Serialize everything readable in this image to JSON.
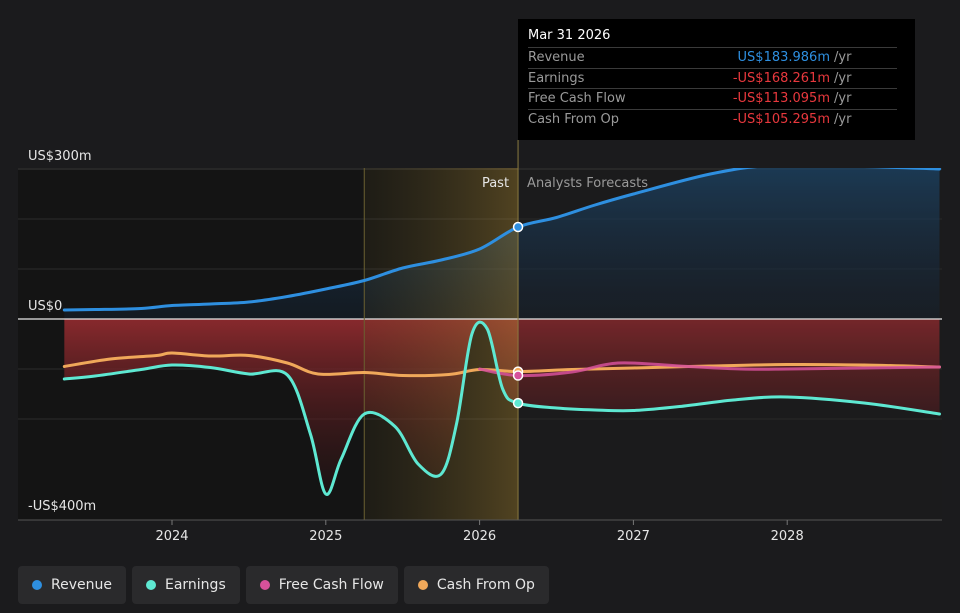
{
  "chart_data": {
    "type": "line",
    "y_labels": {
      "top": "US$300m",
      "zero": "US$0",
      "bottom": "-US$400m"
    },
    "ylim": [
      -400,
      300
    ],
    "xlim": [
      2023.3,
      2028.99
    ],
    "x_ticks": [
      {
        "label": "2024",
        "value": 2024.0
      },
      {
        "label": "2025",
        "value": 2025.0
      },
      {
        "label": "2026",
        "value": 2026.0
      },
      {
        "label": "2027",
        "value": 2027.0
      },
      {
        "label": "2028",
        "value": 2028.0
      }
    ],
    "divider_x": 2026.25,
    "highlight_start_x": 2025.25,
    "past_label": "Past",
    "forecast_label": "Analysts Forecasts",
    "series": [
      {
        "name": "Revenue",
        "color": "#2e8fe0",
        "points": [
          [
            2023.3,
            18
          ],
          [
            2023.5,
            19
          ],
          [
            2023.8,
            21
          ],
          [
            2024.0,
            27
          ],
          [
            2024.25,
            30
          ],
          [
            2024.5,
            34
          ],
          [
            2024.75,
            45
          ],
          [
            2025.0,
            60
          ],
          [
            2025.25,
            77
          ],
          [
            2025.5,
            102
          ],
          [
            2025.75,
            118
          ],
          [
            2026.0,
            140
          ],
          [
            2026.25,
            183.986
          ],
          [
            2026.5,
            203
          ],
          [
            2026.75,
            228
          ],
          [
            2027.0,
            250
          ],
          [
            2027.5,
            290
          ],
          [
            2027.9,
            307
          ],
          [
            2028.5,
            305
          ],
          [
            2028.99,
            300
          ]
        ]
      },
      {
        "name": "Earnings",
        "color": "#5ee8d2",
        "points": [
          [
            2023.3,
            -120
          ],
          [
            2023.5,
            -114
          ],
          [
            2023.8,
            -101
          ],
          [
            2024.0,
            -92
          ],
          [
            2024.25,
            -97
          ],
          [
            2024.5,
            -110
          ],
          [
            2024.75,
            -112
          ],
          [
            2024.9,
            -230
          ],
          [
            2025.0,
            -350
          ],
          [
            2025.1,
            -280
          ],
          [
            2025.25,
            -190
          ],
          [
            2025.45,
            -215
          ],
          [
            2025.6,
            -290
          ],
          [
            2025.75,
            -310
          ],
          [
            2025.85,
            -210
          ],
          [
            2025.95,
            -30
          ],
          [
            2026.05,
            -20
          ],
          [
            2026.15,
            -140
          ],
          [
            2026.25,
            -168.261
          ],
          [
            2026.5,
            -178
          ],
          [
            2026.75,
            -182
          ],
          [
            2027.0,
            -183
          ],
          [
            2027.3,
            -175
          ],
          [
            2027.65,
            -162
          ],
          [
            2028.0,
            -156
          ],
          [
            2028.5,
            -168
          ],
          [
            2028.99,
            -190
          ]
        ]
      },
      {
        "name": "Free Cash Flow",
        "color": "#d6519b",
        "points": [
          [
            2026.0,
            -100
          ],
          [
            2026.25,
            -113.095
          ],
          [
            2026.6,
            -106
          ],
          [
            2026.9,
            -88
          ],
          [
            2027.3,
            -94
          ],
          [
            2027.7,
            -100
          ],
          [
            2028.0,
            -100
          ],
          [
            2028.5,
            -98
          ],
          [
            2028.99,
            -96
          ]
        ]
      },
      {
        "name": "Cash From Op",
        "color": "#f0a85a",
        "points": [
          [
            2023.3,
            -95
          ],
          [
            2023.6,
            -80
          ],
          [
            2023.9,
            -73
          ],
          [
            2024.0,
            -68
          ],
          [
            2024.25,
            -74
          ],
          [
            2024.5,
            -73
          ],
          [
            2024.75,
            -88
          ],
          [
            2024.95,
            -110
          ],
          [
            2025.25,
            -107
          ],
          [
            2025.5,
            -113
          ],
          [
            2025.8,
            -111
          ],
          [
            2026.0,
            -101
          ],
          [
            2026.25,
            -105.295
          ],
          [
            2026.6,
            -101
          ],
          [
            2027.0,
            -98
          ],
          [
            2027.5,
            -94
          ],
          [
            2028.0,
            -91
          ],
          [
            2028.5,
            -92
          ],
          [
            2028.99,
            -96
          ]
        ]
      }
    ]
  },
  "tooltip": {
    "date": "Mar 31 2026",
    "rows": [
      {
        "label": "Revenue",
        "value": "US$183.986m",
        "unit": "/yr",
        "color": "#2e8fe0"
      },
      {
        "label": "Earnings",
        "value": "-US$168.261m",
        "unit": "/yr",
        "color": "#e8383d"
      },
      {
        "label": "Free Cash Flow",
        "value": "-US$113.095m",
        "unit": "/yr",
        "color": "#e8383d"
      },
      {
        "label": "Cash From Op",
        "value": "-US$105.295m",
        "unit": "/yr",
        "color": "#e8383d"
      }
    ]
  },
  "legend": [
    {
      "label": "Revenue",
      "color": "#2e8fe0"
    },
    {
      "label": "Earnings",
      "color": "#5ee8d2"
    },
    {
      "label": "Free Cash Flow",
      "color": "#d6519b"
    },
    {
      "label": "Cash From Op",
      "color": "#f0a85a"
    }
  ]
}
